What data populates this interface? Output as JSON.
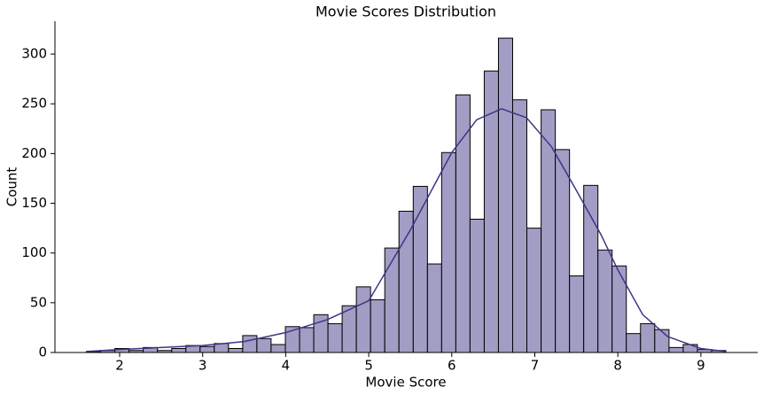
{
  "chart_data": {
    "type": "histogram",
    "title": "Movie Scores Distribution",
    "x_label": "Movie Score",
    "y_label": "Count",
    "bins": [
      1.6,
      1.771,
      1.942,
      2.113,
      2.284,
      2.456,
      2.627,
      2.798,
      2.969,
      3.14,
      3.311,
      3.482,
      3.653,
      3.824,
      3.996,
      4.167,
      4.338,
      4.509,
      4.68,
      4.851,
      5.022,
      5.193,
      5.364,
      5.536,
      5.707,
      5.878,
      6.049,
      6.22,
      6.391,
      6.562,
      6.733,
      6.904,
      7.076,
      7.247,
      7.418,
      7.589,
      7.76,
      7.931,
      8.102,
      8.273,
      8.444,
      8.616,
      8.787,
      8.958,
      9.129,
      9.3
    ],
    "values": [
      1,
      2,
      4,
      2,
      5,
      2,
      4,
      7,
      6,
      9,
      4,
      17,
      14,
      8,
      26,
      25,
      38,
      29,
      47,
      66,
      53,
      105,
      142,
      167,
      89,
      201,
      259,
      134,
      283,
      316,
      254,
      125,
      244,
      204,
      77,
      168,
      103,
      87,
      19,
      29,
      23,
      5,
      8,
      3,
      2
    ],
    "color": "#a29dc4",
    "edge_color": "#000000",
    "kde": {
      "color": "#3d3585",
      "x": [
        1.6,
        2,
        2.5,
        3,
        3.5,
        4,
        4.5,
        5,
        5.5,
        6,
        6.3,
        6.6,
        6.9,
        7.2,
        7.5,
        7.8,
        8,
        8.3,
        8.6,
        9,
        9.3
      ],
      "values": [
        1,
        3,
        5,
        7,
        11,
        20,
        33,
        52,
        123,
        201,
        234,
        245,
        236,
        207,
        163,
        118,
        83,
        38,
        16,
        4,
        1
      ]
    },
    "xlim": [
      1.221,
      9.684
    ],
    "xticks": [
      2,
      3,
      4,
      5,
      6,
      7,
      8,
      9
    ],
    "ylim": [
      0,
      333
    ],
    "yticks": [
      0,
      50,
      100,
      150,
      200,
      250,
      300
    ]
  }
}
